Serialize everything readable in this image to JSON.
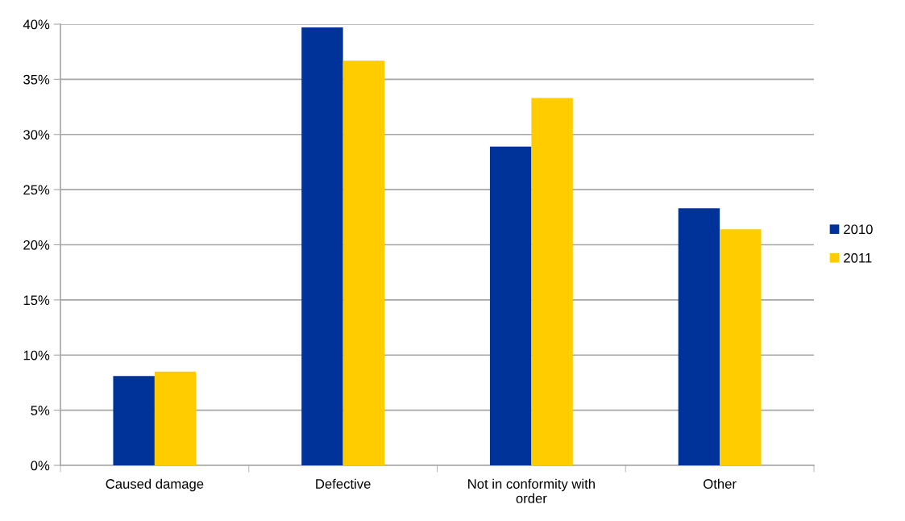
{
  "chart_data": {
    "type": "bar",
    "categories": [
      "Caused damage",
      "Defective",
      "Not in conformity with\norder",
      "Other"
    ],
    "series": [
      {
        "name": "2010",
        "color": "#003399",
        "values": [
          8.1,
          39.7,
          28.9,
          23.3
        ]
      },
      {
        "name": "2011",
        "color": "#ffcc00",
        "values": [
          8.5,
          36.7,
          33.3,
          21.4
        ]
      }
    ],
    "ylim": [
      0,
      40
    ],
    "yticks": [
      {
        "value": 0,
        "label": "0%"
      },
      {
        "value": 5,
        "label": "5%"
      },
      {
        "value": 10,
        "label": "10%"
      },
      {
        "value": 15,
        "label": "15%"
      },
      {
        "value": 20,
        "label": "20%"
      },
      {
        "value": 25,
        "label": "25%"
      },
      {
        "value": 30,
        "label": "30%"
      },
      {
        "value": 35,
        "label": "35%"
      },
      {
        "value": 40,
        "label": "40%"
      }
    ],
    "grid": "y",
    "legend": "right"
  }
}
